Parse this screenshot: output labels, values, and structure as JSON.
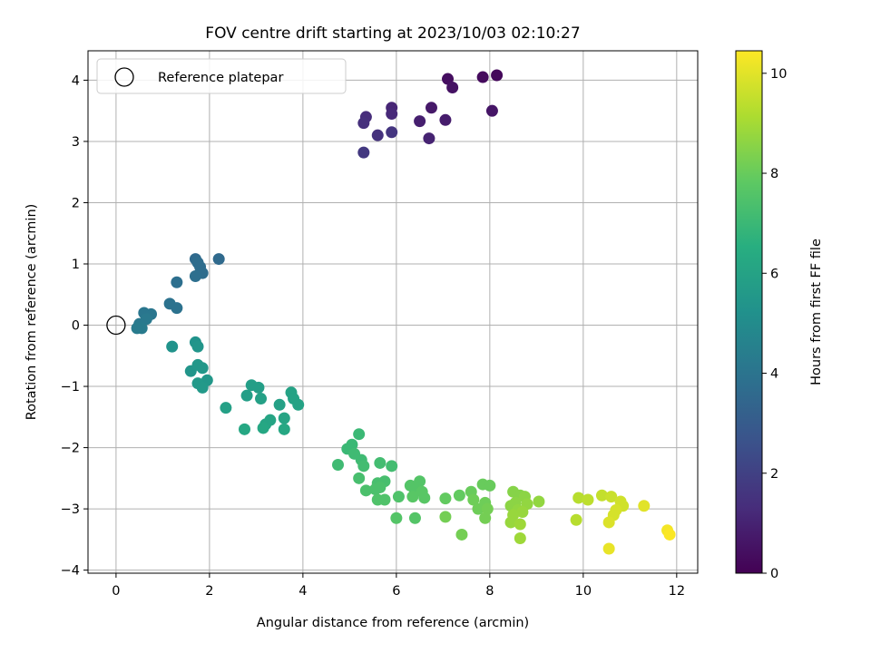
{
  "chart_data": {
    "type": "scatter",
    "title": "FOV centre drift starting at 2023/10/03 02:10:27",
    "xlabel": "Angular distance from reference (arcmin)",
    "ylabel": "Rotation from reference (arcmin)",
    "xlim": [
      -0.6,
      12.45
    ],
    "ylim": [
      -4.05,
      4.48
    ],
    "xticks": [
      0,
      2,
      4,
      6,
      8,
      10,
      12
    ],
    "yticks": [
      -4,
      -3,
      -2,
      -1,
      0,
      1,
      2,
      3,
      4
    ],
    "grid": true,
    "legend": {
      "position": "top-left",
      "label": "Reference platepar"
    },
    "reference_point": {
      "x": 0,
      "y": 0
    },
    "colorbar": {
      "label": "Hours from first FF file",
      "colormap": "viridis",
      "range": [
        0,
        10.45
      ],
      "ticks": [
        0,
        2,
        4,
        6,
        8,
        10
      ]
    },
    "series": [
      {
        "columns": [
          "x",
          "y",
          "hours"
        ],
        "points": [
          [
            8.15,
            4.08,
            0.2
          ],
          [
            7.85,
            4.05,
            0.3
          ],
          [
            7.1,
            4.02,
            0.4
          ],
          [
            7.2,
            3.88,
            0.5
          ],
          [
            8.05,
            3.5,
            0.6
          ],
          [
            6.75,
            3.55,
            0.7
          ],
          [
            7.05,
            3.35,
            0.8
          ],
          [
            6.5,
            3.33,
            0.9
          ],
          [
            6.7,
            3.05,
            1.0
          ],
          [
            5.9,
            3.55,
            1.1
          ],
          [
            5.9,
            3.45,
            1.2
          ],
          [
            5.35,
            3.4,
            1.3
          ],
          [
            5.3,
            3.3,
            1.4
          ],
          [
            5.6,
            3.1,
            1.5
          ],
          [
            5.9,
            3.15,
            1.6
          ],
          [
            5.3,
            2.82,
            1.7
          ],
          [
            2.2,
            1.08,
            3.6
          ],
          [
            1.7,
            1.08,
            3.6
          ],
          [
            1.75,
            1.02,
            3.7
          ],
          [
            1.8,
            0.95,
            3.7
          ],
          [
            1.85,
            0.85,
            3.7
          ],
          [
            1.7,
            0.8,
            3.8
          ],
          [
            1.3,
            0.7,
            3.8
          ],
          [
            1.15,
            0.35,
            3.9
          ],
          [
            1.3,
            0.28,
            3.9
          ],
          [
            0.6,
            0.2,
            4.1
          ],
          [
            0.75,
            0.18,
            4.1
          ],
          [
            0.65,
            0.1,
            4.2
          ],
          [
            0.5,
            0.02,
            4.2
          ],
          [
            0.55,
            -0.05,
            4.3
          ],
          [
            0.45,
            -0.05,
            4.3
          ],
          [
            1.2,
            -0.35,
            5.3
          ],
          [
            1.7,
            -0.28,
            5.3
          ],
          [
            1.75,
            -0.35,
            5.4
          ],
          [
            1.6,
            -0.75,
            5.4
          ],
          [
            1.75,
            -0.65,
            5.5
          ],
          [
            1.85,
            -0.7,
            5.5
          ],
          [
            1.95,
            -0.9,
            5.5
          ],
          [
            1.75,
            -0.95,
            5.6
          ],
          [
            1.85,
            -1.02,
            5.6
          ],
          [
            2.9,
            -0.98,
            5.8
          ],
          [
            3.05,
            -1.02,
            5.8
          ],
          [
            2.8,
            -1.15,
            5.8
          ],
          [
            3.1,
            -1.2,
            5.9
          ],
          [
            2.35,
            -1.35,
            5.9
          ],
          [
            3.5,
            -1.3,
            5.9
          ],
          [
            3.75,
            -1.1,
            6.0
          ],
          [
            3.8,
            -1.2,
            6.0
          ],
          [
            3.9,
            -1.3,
            6.0
          ],
          [
            3.6,
            -1.52,
            6.1
          ],
          [
            3.3,
            -1.55,
            6.1
          ],
          [
            3.2,
            -1.62,
            6.1
          ],
          [
            3.15,
            -1.68,
            6.2
          ],
          [
            3.6,
            -1.7,
            6.2
          ],
          [
            2.75,
            -1.7,
            6.2
          ],
          [
            5.2,
            -1.78,
            7.0
          ],
          [
            5.05,
            -1.95,
            7.0
          ],
          [
            4.95,
            -2.02,
            7.0
          ],
          [
            5.1,
            -2.1,
            7.1
          ],
          [
            5.25,
            -2.2,
            7.1
          ],
          [
            4.75,
            -2.28,
            7.1
          ],
          [
            5.3,
            -2.3,
            7.2
          ],
          [
            5.65,
            -2.25,
            7.2
          ],
          [
            5.9,
            -2.3,
            7.2
          ],
          [
            5.2,
            -2.5,
            7.3
          ],
          [
            5.6,
            -2.58,
            7.3
          ],
          [
            5.75,
            -2.55,
            7.3
          ],
          [
            5.35,
            -2.7,
            7.4
          ],
          [
            5.55,
            -2.68,
            7.4
          ],
          [
            5.65,
            -2.65,
            7.4
          ],
          [
            5.6,
            -2.85,
            7.5
          ],
          [
            5.75,
            -2.85,
            7.5
          ],
          [
            6.05,
            -2.8,
            7.5
          ],
          [
            6.3,
            -2.62,
            7.6
          ],
          [
            6.5,
            -2.55,
            7.6
          ],
          [
            6.4,
            -2.7,
            7.6
          ],
          [
            6.55,
            -2.72,
            7.7
          ],
          [
            6.35,
            -2.8,
            7.7
          ],
          [
            6.6,
            -2.82,
            7.7
          ],
          [
            6.0,
            -3.15,
            7.6
          ],
          [
            6.4,
            -3.15,
            7.6
          ],
          [
            7.05,
            -2.83,
            7.9
          ],
          [
            7.35,
            -2.78,
            7.9
          ],
          [
            7.6,
            -2.72,
            8.0
          ],
          [
            7.85,
            -2.6,
            8.0
          ],
          [
            8.0,
            -2.62,
            8.0
          ],
          [
            7.65,
            -2.85,
            8.1
          ],
          [
            7.9,
            -2.9,
            8.1
          ],
          [
            7.75,
            -3.0,
            8.1
          ],
          [
            7.95,
            -3.0,
            8.2
          ],
          [
            7.9,
            -3.15,
            8.2
          ],
          [
            7.05,
            -3.13,
            8.2
          ],
          [
            7.4,
            -3.42,
            8.2
          ],
          [
            8.5,
            -2.72,
            8.5
          ],
          [
            8.65,
            -2.78,
            8.5
          ],
          [
            8.75,
            -2.8,
            8.6
          ],
          [
            8.55,
            -2.9,
            8.6
          ],
          [
            8.45,
            -2.95,
            8.6
          ],
          [
            8.8,
            -2.92,
            8.7
          ],
          [
            9.05,
            -2.88,
            8.7
          ],
          [
            8.6,
            -3.02,
            8.7
          ],
          [
            8.7,
            -3.05,
            8.8
          ],
          [
            8.5,
            -3.1,
            8.8
          ],
          [
            8.45,
            -3.22,
            8.8
          ],
          [
            8.65,
            -3.25,
            8.9
          ],
          [
            8.65,
            -3.48,
            8.9
          ],
          [
            9.85,
            -3.18,
            9.3
          ],
          [
            9.9,
            -2.82,
            9.3
          ],
          [
            10.1,
            -2.85,
            9.4
          ],
          [
            10.4,
            -2.78,
            9.5
          ],
          [
            10.6,
            -2.8,
            9.6
          ],
          [
            10.8,
            -2.88,
            9.7
          ],
          [
            10.85,
            -2.95,
            9.7
          ],
          [
            10.7,
            -3.02,
            9.8
          ],
          [
            10.65,
            -3.1,
            9.8
          ],
          [
            10.55,
            -3.22,
            9.9
          ],
          [
            11.3,
            -2.95,
            10.0
          ],
          [
            10.55,
            -3.65,
            10.1
          ],
          [
            11.8,
            -3.35,
            10.3
          ],
          [
            11.85,
            -3.42,
            10.4
          ]
        ]
      }
    ]
  }
}
